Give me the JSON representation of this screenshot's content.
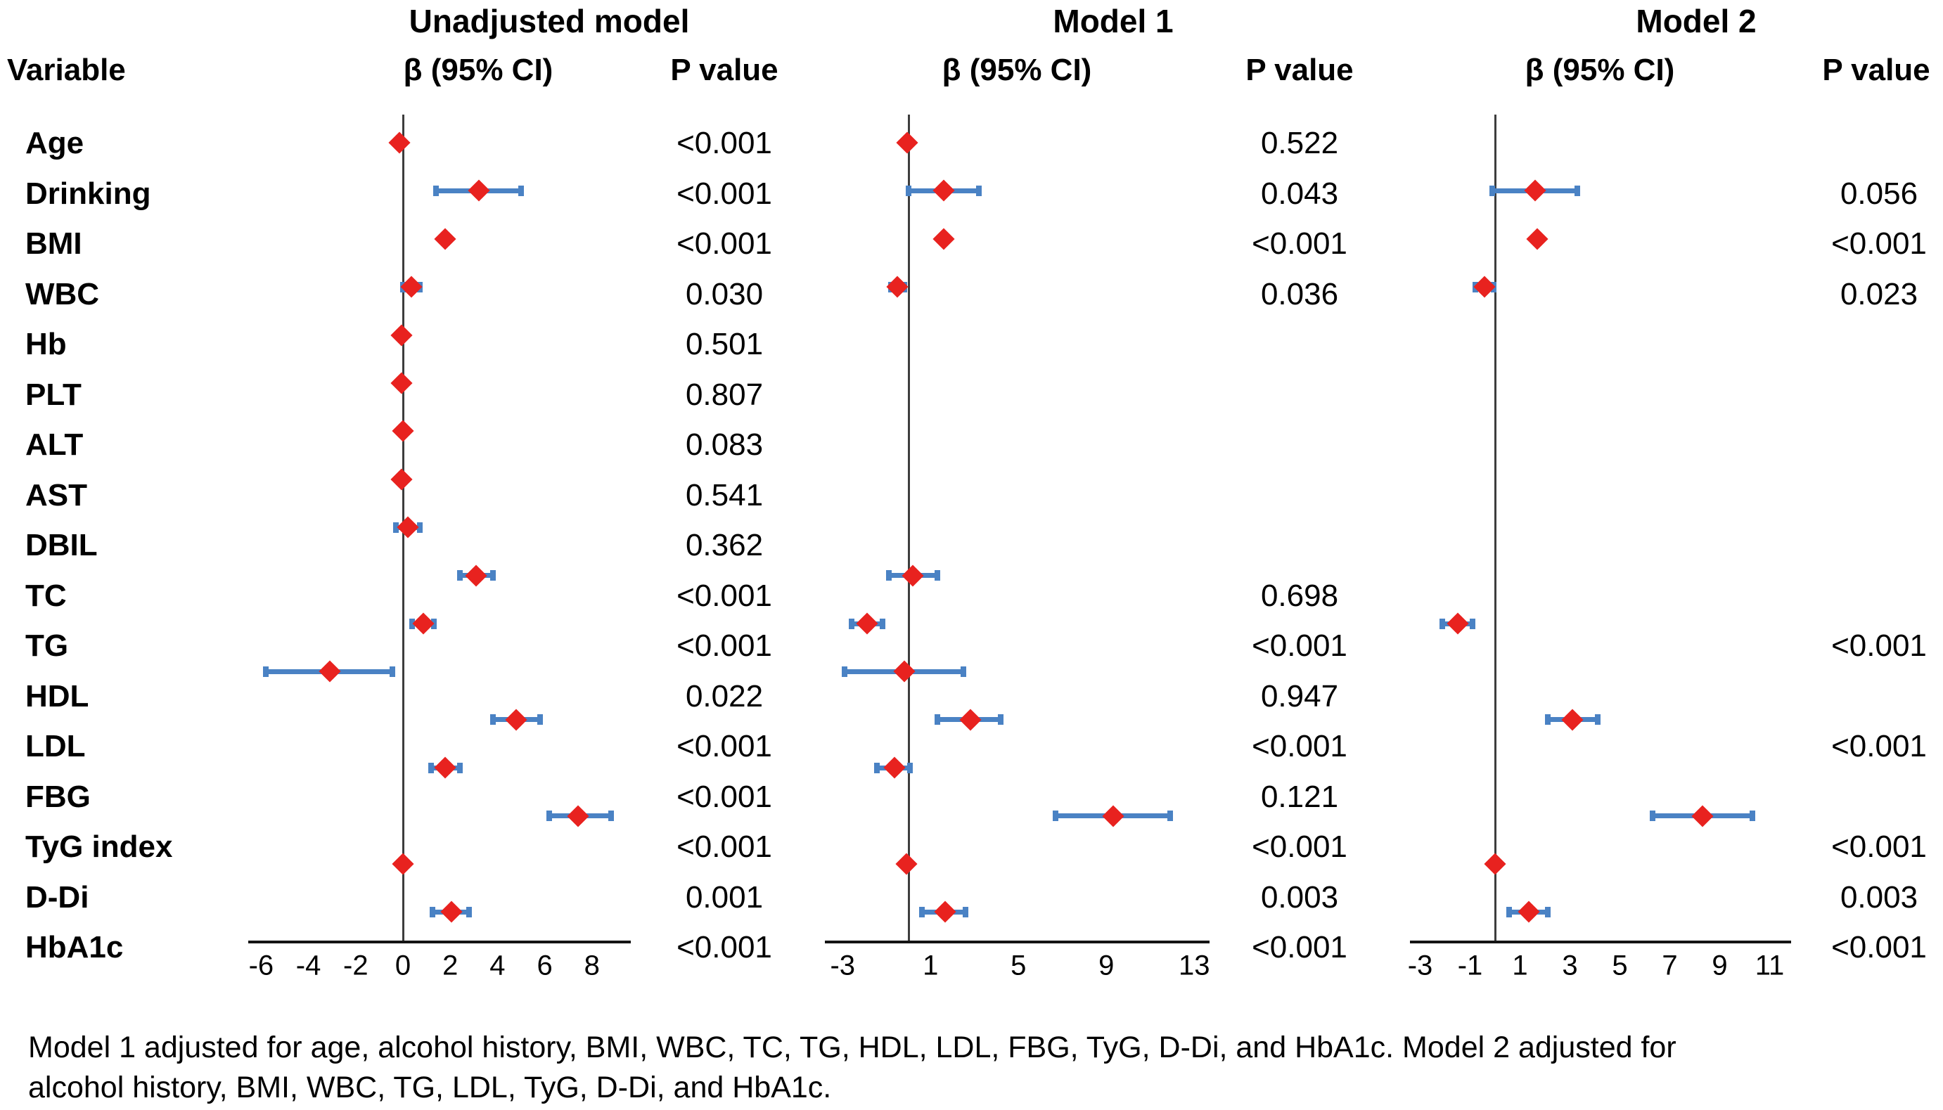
{
  "header": {
    "variable_label": "Variable"
  },
  "footnote": {
    "line1": "Model 1 adjusted for age, alcohol history, BMI, WBC, TC, TG, HDL, LDL, FBG, TyG, D-Di, and HbA1c. Model 2 adjusted for",
    "line2": "alcohol history, BMI, WBC, TG, LDL, TyG, D-Di, and HbA1c."
  },
  "colors": {
    "marker_red": "#e8221f",
    "ci_blue": "#4a82c4",
    "axis_black": "#141414",
    "zero_line_gray": "#3d3d3d"
  },
  "chart_data": {
    "type": "forest",
    "grid": false,
    "variables": [
      "Age",
      "Drinking",
      "BMI",
      "WBC",
      "Hb",
      "PLT",
      "ALT",
      "AST",
      "DBIL",
      "TC",
      "TG",
      "HDL",
      "LDL",
      "FBG",
      "TyG index",
      "D-Di",
      "HbA1c"
    ],
    "panels": [
      {
        "title": "Unadjusted model",
        "beta_header": "β (95% CI)",
        "p_header": "P value",
        "axis_ticks": [
          -6,
          -4,
          -2,
          0,
          2,
          4,
          6,
          8
        ],
        "xlim": [
          -6.5,
          9.6
        ],
        "points": [
          {
            "variable": "Age",
            "beta": -0.15,
            "lo": null,
            "hi": null,
            "p": "<0.001"
          },
          {
            "variable": "Drinking",
            "beta": 3.2,
            "lo": 1.4,
            "hi": 5.0,
            "p": "<0.001"
          },
          {
            "variable": "BMI",
            "beta": 1.8,
            "lo": null,
            "hi": null,
            "p": "<0.001"
          },
          {
            "variable": "WBC",
            "beta": 0.35,
            "lo": 0.0,
            "hi": 0.7,
            "p": "0.030"
          },
          {
            "variable": "Hb",
            "beta": -0.05,
            "lo": null,
            "hi": null,
            "p": "0.501"
          },
          {
            "variable": "PLT",
            "beta": -0.05,
            "lo": null,
            "hi": null,
            "p": "0.807"
          },
          {
            "variable": "ALT",
            "beta": 0.0,
            "lo": null,
            "hi": null,
            "p": "0.083"
          },
          {
            "variable": "AST",
            "beta": -0.05,
            "lo": null,
            "hi": null,
            "p": "0.541"
          },
          {
            "variable": "DBIL",
            "beta": 0.2,
            "lo": -0.3,
            "hi": 0.7,
            "p": "0.362"
          },
          {
            "variable": "TC",
            "beta": 3.1,
            "lo": 2.4,
            "hi": 3.8,
            "p": "<0.001"
          },
          {
            "variable": "TG",
            "beta": 0.85,
            "lo": 0.4,
            "hi": 1.3,
            "p": "<0.001"
          },
          {
            "variable": "HDL",
            "beta": -3.1,
            "lo": -5.8,
            "hi": -0.45,
            "p": "0.022"
          },
          {
            "variable": "LDL",
            "beta": 4.8,
            "lo": 3.8,
            "hi": 5.8,
            "p": "<0.001"
          },
          {
            "variable": "FBG",
            "beta": 1.8,
            "lo": 1.2,
            "hi": 2.4,
            "p": "<0.001"
          },
          {
            "variable": "TyG index",
            "beta": 7.4,
            "lo": 6.2,
            "hi": 8.8,
            "p": "<0.001"
          },
          {
            "variable": "D-Di",
            "beta": 0.0,
            "lo": null,
            "hi": null,
            "p": "0.001"
          },
          {
            "variable": "HbA1c",
            "beta": 2.05,
            "lo": 1.25,
            "hi": 2.8,
            "p": "<0.001"
          }
        ]
      },
      {
        "title": "Model 1",
        "beta_header": "β (95% CI)",
        "p_header": "P value",
        "axis_ticks": [
          -3,
          1,
          5,
          9,
          13
        ],
        "xlim": [
          -3.8,
          13.7
        ],
        "points": [
          {
            "variable": "Age",
            "beta": -0.05,
            "lo": null,
            "hi": null,
            "p": "0.522"
          },
          {
            "variable": "Drinking",
            "beta": 1.6,
            "lo": 0.0,
            "hi": 3.2,
            "p": "0.043"
          },
          {
            "variable": "BMI",
            "beta": 1.6,
            "lo": null,
            "hi": null,
            "p": "<0.001"
          },
          {
            "variable": "WBC",
            "beta": -0.5,
            "lo": -0.8,
            "hi": -0.2,
            "p": "0.036"
          },
          null,
          null,
          null,
          null,
          null,
          {
            "variable": "TC",
            "beta": 0.2,
            "lo": -0.9,
            "hi": 1.3,
            "p": "0.698"
          },
          {
            "variable": "TG",
            "beta": -1.9,
            "lo": -2.6,
            "hi": -1.2,
            "p": "<0.001"
          },
          {
            "variable": "HDL",
            "beta": -0.2,
            "lo": -2.9,
            "hi": 2.5,
            "p": "0.947"
          },
          {
            "variable": "LDL",
            "beta": 2.8,
            "lo": 1.3,
            "hi": 4.2,
            "p": "<0.001"
          },
          {
            "variable": "FBG",
            "beta": -0.65,
            "lo": -1.45,
            "hi": 0.05,
            "p": "0.121"
          },
          {
            "variable": "TyG index",
            "beta": 9.3,
            "lo": 6.7,
            "hi": 11.9,
            "p": "<0.001"
          },
          {
            "variable": "D-Di",
            "beta": -0.1,
            "lo": null,
            "hi": null,
            "p": "0.003"
          },
          {
            "variable": "HbA1c",
            "beta": 1.65,
            "lo": 0.6,
            "hi": 2.6,
            "p": "<0.001"
          }
        ]
      },
      {
        "title": "Model 2",
        "beta_header": "β (95% CI)",
        "p_header": "P value",
        "axis_ticks": [
          -3,
          -1,
          1,
          3,
          5,
          7,
          9,
          11
        ],
        "xlim": [
          -3.4,
          11.9
        ],
        "points": [
          null,
          {
            "variable": "Drinking",
            "beta": 1.6,
            "lo": -0.1,
            "hi": 3.3,
            "p": "0.056"
          },
          {
            "variable": "BMI",
            "beta": 1.7,
            "lo": null,
            "hi": null,
            "p": "<0.001"
          },
          {
            "variable": "WBC",
            "beta": -0.42,
            "lo": -0.8,
            "hi": -0.05,
            "p": "0.023"
          },
          null,
          null,
          null,
          null,
          null,
          null,
          {
            "variable": "TG",
            "beta": -1.5,
            "lo": -2.1,
            "hi": -0.9,
            "p": "<0.001"
          },
          null,
          {
            "variable": "LDL",
            "beta": 3.1,
            "lo": 2.1,
            "hi": 4.1,
            "p": "<0.001"
          },
          null,
          {
            "variable": "TyG index",
            "beta": 8.3,
            "lo": 6.3,
            "hi": 10.3,
            "p": "<0.001"
          },
          {
            "variable": "D-Di",
            "beta": 0.0,
            "lo": null,
            "hi": null,
            "p": "0.003"
          },
          {
            "variable": "HbA1c",
            "beta": 1.35,
            "lo": 0.55,
            "hi": 2.1,
            "p": "<0.001"
          }
        ]
      }
    ]
  }
}
